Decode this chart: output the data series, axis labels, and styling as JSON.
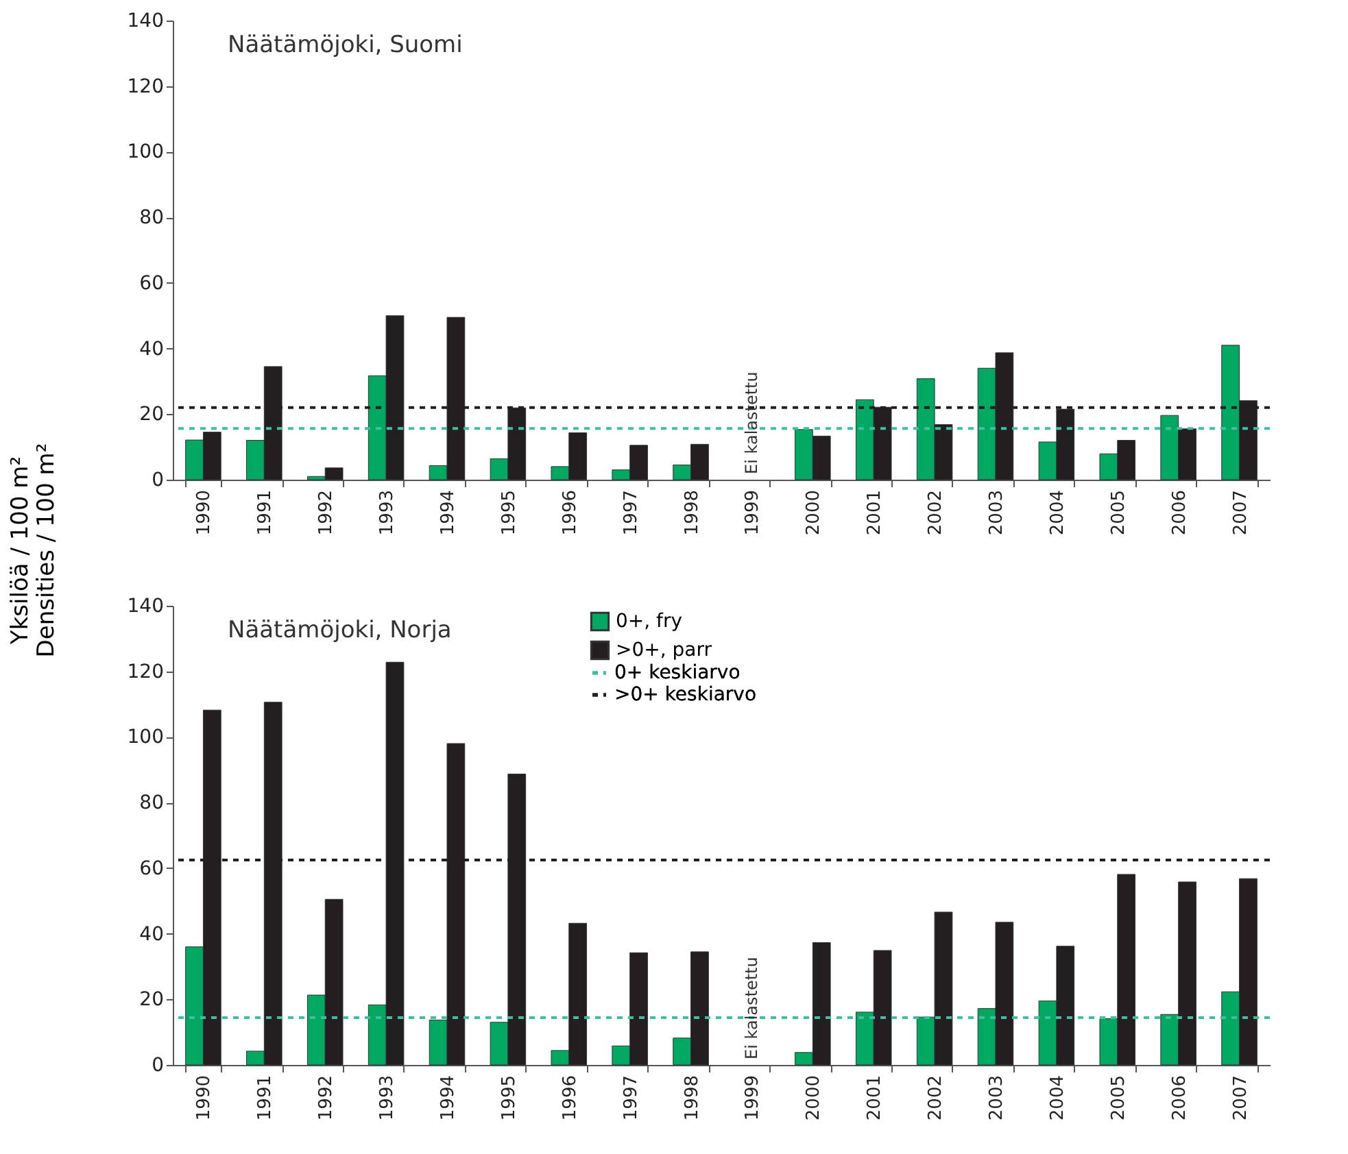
{
  "chart_data": [
    {
      "type": "bar",
      "title": "Näätämöjoki, Suomi",
      "ylabel": "Yksilöä / 100 m²\nDensities / 100 m²",
      "categories": [
        "1990",
        "1991",
        "1992",
        "1993",
        "1994",
        "1995",
        "1996",
        "1997",
        "1998",
        "1999",
        "2000",
        "2001",
        "2002",
        "2003",
        "2004",
        "2005",
        "2006",
        "2007"
      ],
      "series": [
        {
          "color": "#00a862",
          "values": [
            12.1,
            12,
            1,
            31.7,
            4.3,
            6.4,
            4,
            3,
            4.5,
            null,
            15.3,
            24.4,
            30.8,
            34,
            11.5,
            7.9,
            19.6,
            41
          ]
        },
        {
          "color": "#231f20",
          "values": [
            14.5,
            34.5,
            3.6,
            50,
            49.5,
            21.9,
            14.3,
            10.5,
            10.8,
            null,
            13.3,
            22.1,
            16.8,
            38.7,
            21.5,
            12,
            15.5,
            24.1
          ]
        }
      ],
      "ref_lines": [
        {
          "axis": "y",
          "value": 15.6,
          "color": "#3fbf9f",
          "line_style": "dashed"
        },
        {
          "axis": "y",
          "value": 22,
          "color": "#231f20",
          "line_style": "dashed"
        }
      ],
      "annotations": [
        "Ei kalastettu"
      ],
      "ylim": [
        0,
        140
      ],
      "yticks": [
        0,
        20,
        40,
        60,
        80,
        100,
        120,
        140
      ],
      "grid": false,
      "legend": false
    },
    {
      "type": "bar",
      "title": "Näätämöjoki, Norja",
      "categories": [
        "1990",
        "1991",
        "1992",
        "1993",
        "1994",
        "1995",
        "1996",
        "1997",
        "1998",
        "1999",
        "2000",
        "2001",
        "2002",
        "2003",
        "2004",
        "2005",
        "2006",
        "2007"
      ],
      "series": [
        {
          "name": "0+, fry",
          "color": "#00a862",
          "values": [
            36,
            4.2,
            21.3,
            18.3,
            13.7,
            13,
            4.4,
            5.8,
            8.2,
            null,
            3.8,
            16.1,
            14.6,
            17.2,
            19.5,
            14.1,
            15.4,
            22.3
          ]
        },
        {
          "name": ">0+, parr",
          "color": "#231f20",
          "values": [
            108.2,
            110.6,
            50.5,
            122.8,
            98,
            88.7,
            43.2,
            34.2,
            34.5,
            null,
            37.3,
            34.9,
            46.6,
            43.5,
            36.2,
            58.1,
            55.8,
            56.8
          ]
        }
      ],
      "ref_lines": [
        {
          "axis": "y",
          "value": 14.4,
          "label": "0+ keskiarvo",
          "color": "#3fbf9f",
          "line_style": "dashed"
        },
        {
          "axis": "y",
          "value": 62.5,
          "label": ">0+ keskiarvo",
          "color": "#231f20",
          "line_style": "dashed"
        }
      ],
      "annotations": [
        "Ei kalastettu"
      ],
      "ylim": [
        0,
        140
      ],
      "yticks": [
        0,
        20,
        40,
        60,
        80,
        100,
        120,
        140
      ],
      "grid": false,
      "legend": "top"
    }
  ]
}
